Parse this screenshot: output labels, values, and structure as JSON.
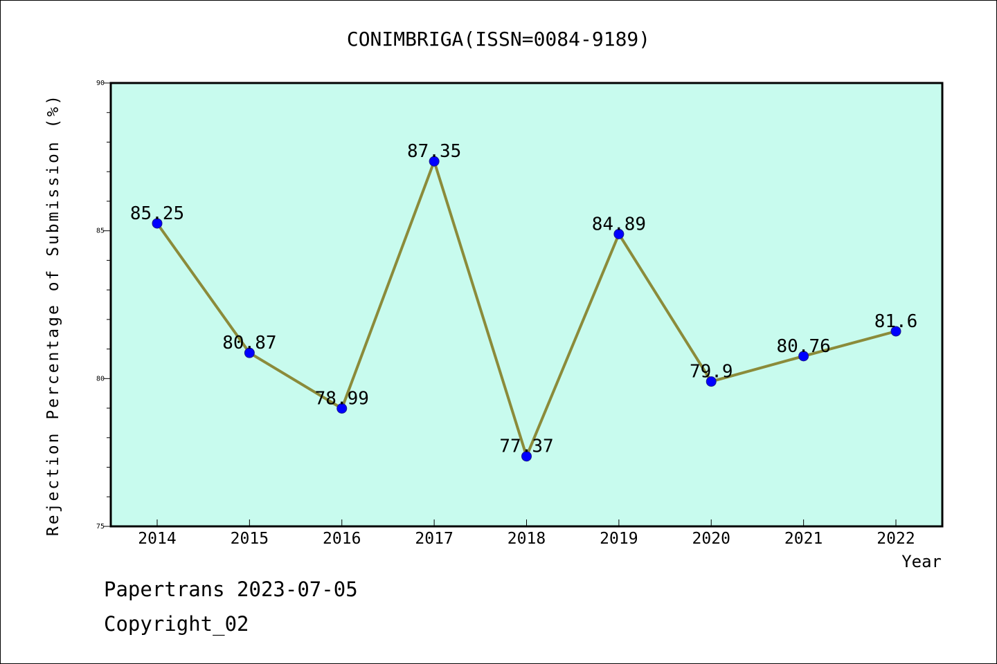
{
  "chart_data": {
    "type": "line",
    "title": "CONIMBRIGA(ISSN=0084-9189)",
    "xlabel": "Year",
    "ylabel": "Rejection Percentage of Submission (%)",
    "categories": [
      "2014",
      "2015",
      "2016",
      "2017",
      "2018",
      "2019",
      "2020",
      "2021",
      "2022"
    ],
    "values": [
      85.25,
      80.87,
      78.99,
      87.35,
      77.37,
      84.89,
      79.9,
      80.76,
      81.6
    ],
    "data_labels": [
      "85.25",
      "80.87",
      "78.99",
      "87.35",
      "77.37",
      "84.89",
      "79.9",
      "80.76",
      "81.6"
    ],
    "ylim": [
      75,
      90
    ],
    "yticks": [
      75,
      80,
      85,
      90
    ],
    "ytick_labels": [
      "75",
      "80",
      "85",
      "90"
    ],
    "grid": false,
    "colors": {
      "plot_background": "#c8fbee",
      "line": "#8b8b3a",
      "marker_fill": "#0000ff",
      "marker_edge": "#1a1a8a"
    }
  },
  "footer": {
    "source": "Papertrans 2023-07-05",
    "copyright": "Copyright_02"
  }
}
